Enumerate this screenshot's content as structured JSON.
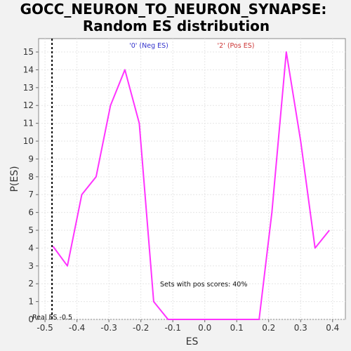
{
  "chart_data": {
    "type": "line",
    "title_line1": "GOCC_NEURON_TO_NEURON_SYNAPSE:",
    "title_line2": "Random ES distribution",
    "xlabel": "ES",
    "ylabel": "P(ES)",
    "xlim": [
      -0.52,
      0.44
    ],
    "ylim": [
      0,
      15.75
    ],
    "x_ticks": [
      -0.5,
      -0.4,
      -0.3,
      -0.2,
      -0.1,
      0.0,
      0.1,
      0.2,
      0.3,
      0.4
    ],
    "y_ticks": [
      0,
      1,
      2,
      3,
      4,
      5,
      6,
      7,
      8,
      9,
      10,
      11,
      12,
      13,
      14,
      15
    ],
    "grid": true,
    "series": [
      {
        "color": "#ff33ff",
        "x": [
          -0.475,
          -0.43,
          -0.385,
          -0.34,
          -0.295,
          -0.25,
          -0.205,
          -0.16,
          -0.115,
          0.17,
          0.21,
          0.255,
          0.3,
          0.345,
          0.39
        ],
        "y": [
          4.1,
          3.0,
          7.0,
          8.0,
          12.0,
          14.0,
          11.0,
          1.0,
          0.0,
          0.0,
          6.0,
          15.0,
          10.0,
          4.0,
          5.0
        ]
      }
    ],
    "actual_es": {
      "x": -0.478,
      "label": "Real ES -0.5",
      "color": "#000000"
    },
    "legend_neg": {
      "label": "'0' (Neg ES)",
      "color": "#3333cc"
    },
    "legend_pos": {
      "label": "'2' (Pos ES)",
      "color": "#cc3333"
    },
    "annotation": "Sets with pos scores: 40%"
  }
}
